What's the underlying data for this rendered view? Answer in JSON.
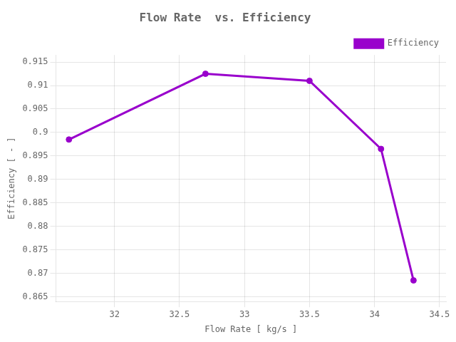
{
  "chart_data": {
    "type": "line",
    "title": "Flow Rate  vs. Efficiency",
    "xlabel": "Flow Rate [ kg/s ]",
    "ylabel": "Efficiency [ - ]",
    "x": [
      31.65,
      32.7,
      33.5,
      34.05,
      34.3
    ],
    "series": [
      {
        "name": "Efficiency",
        "color": "#9900CC",
        "marker": "circle",
        "values": [
          0.8985,
          0.9125,
          0.911,
          0.8965,
          0.8685
        ]
      }
    ],
    "xlim": [
      31.55,
      34.55
    ],
    "xticks": [
      32,
      32.5,
      33,
      33.5,
      34,
      34.5
    ],
    "ylim": [
      0.864,
      0.9165
    ],
    "yticks": [
      0.865,
      0.87,
      0.875,
      0.88,
      0.885,
      0.89,
      0.895,
      0.9,
      0.905,
      0.91,
      0.915
    ],
    "grid": true,
    "legend": "upper right"
  }
}
